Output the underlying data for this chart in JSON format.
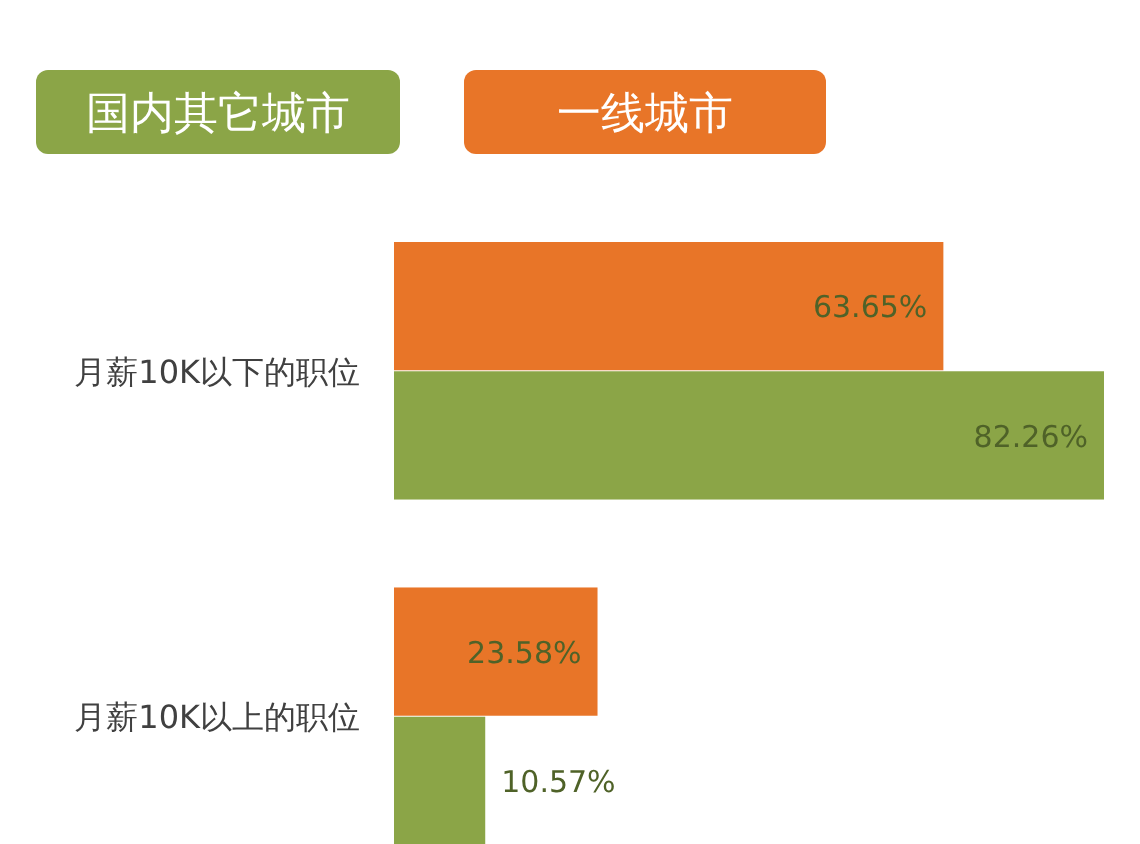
{
  "chart_data": {
    "type": "bar",
    "orientation": "horizontal",
    "categories": [
      "月薪10K以下的职位",
      "月薪10K以上的职位"
    ],
    "series": [
      {
        "name": "国内其它城市",
        "color": "#8ba547",
        "values": [
          82.26,
          10.57
        ],
        "value_labels": [
          "82.26%",
          "10.57%"
        ]
      },
      {
        "name": "一线城市",
        "color": "#e87528",
        "values": [
          63.65,
          23.58
        ],
        "value_labels": [
          "63.65%",
          "23.58%"
        ]
      }
    ],
    "legend": "top left"
  }
}
